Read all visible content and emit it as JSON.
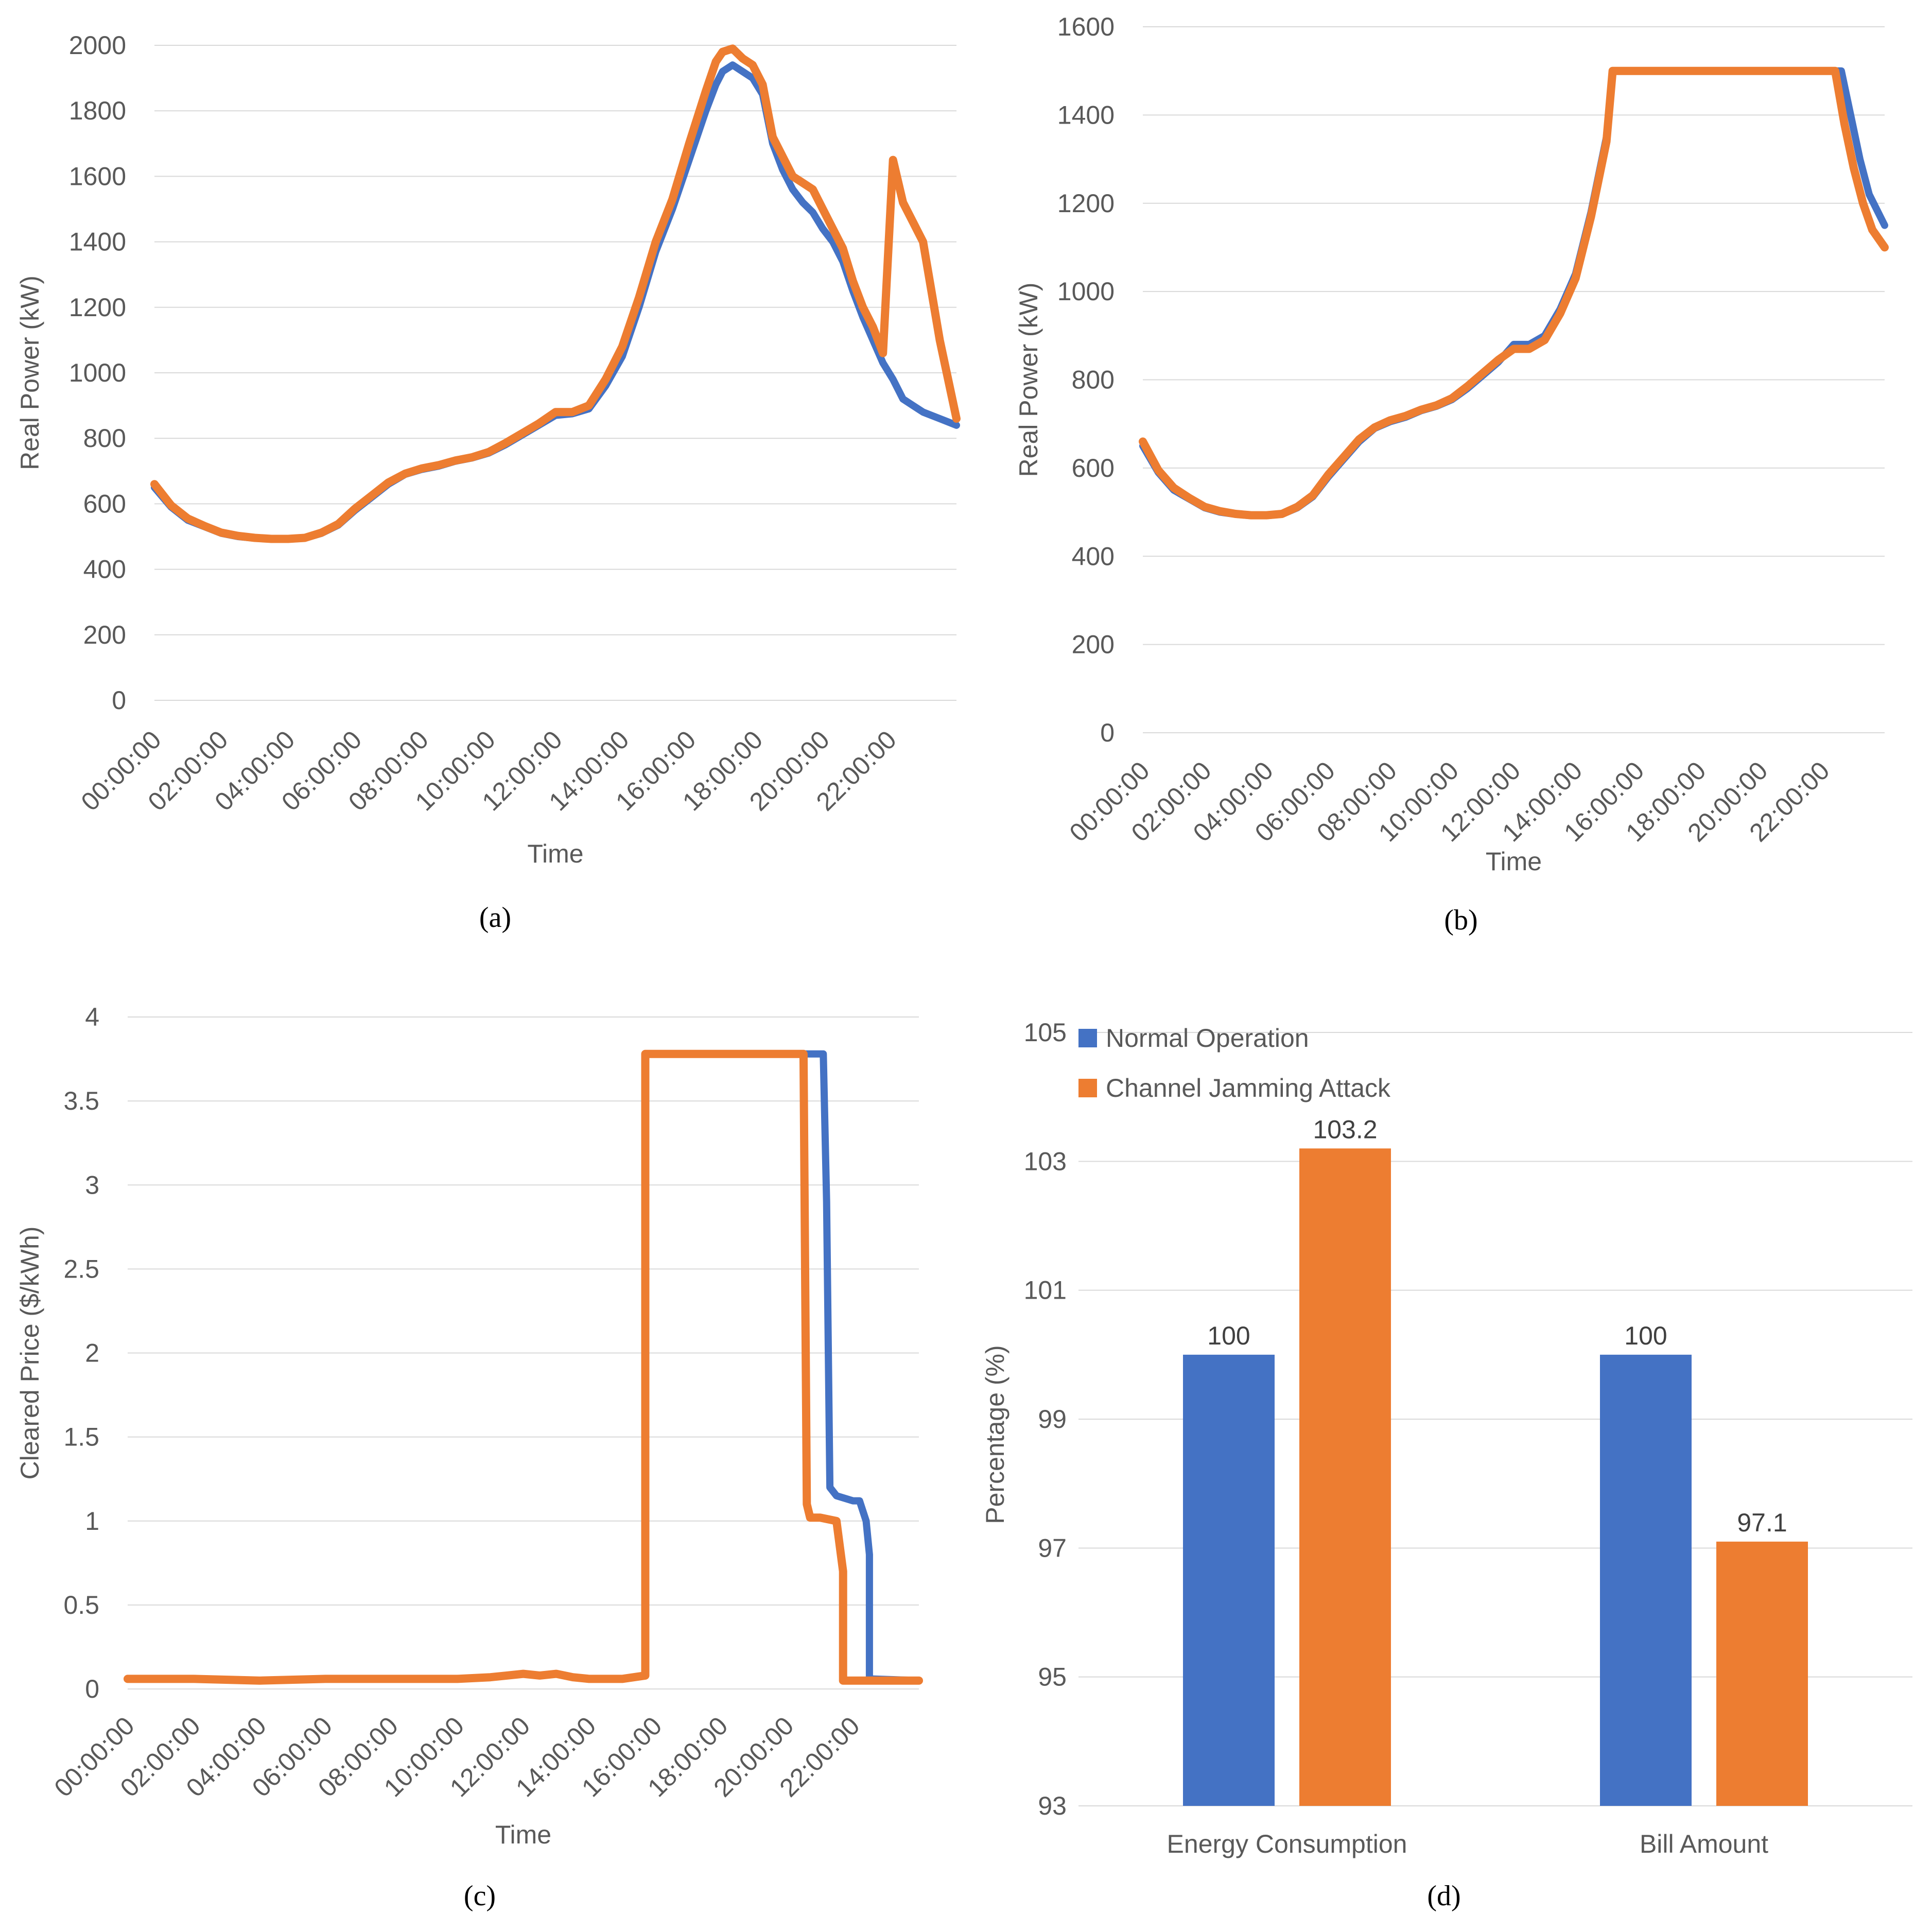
{
  "colors": {
    "normal": "#4472C4",
    "attack": "#ED7D31",
    "grid": "#D9D9D9",
    "text": "#595959"
  },
  "time_ticks": [
    "00:00:00",
    "02:00:00",
    "04:00:00",
    "06:00:00",
    "08:00:00",
    "10:00:00",
    "12:00:00",
    "14:00:00",
    "16:00:00",
    "18:00:00",
    "20:00:00",
    "22:00:00"
  ],
  "chart_data": [
    {
      "id": "a",
      "type": "line",
      "caption": "(a)",
      "xlabel": "Time",
      "ylabel": "Real Power (kW)",
      "ylim": [
        0,
        2000
      ],
      "yticks": [
        0,
        200,
        400,
        600,
        800,
        1000,
        1200,
        1400,
        1600,
        1800,
        2000
      ],
      "xlim": [
        0,
        24
      ],
      "series": [
        {
          "name": "Normal Operation",
          "x": [
            0,
            0.5,
            1,
            1.5,
            2,
            2.5,
            3,
            3.5,
            4,
            4.5,
            5,
            5.5,
            6,
            6.5,
            7,
            7.5,
            8,
            8.5,
            9,
            9.5,
            10,
            10.5,
            11,
            11.5,
            12,
            12.5,
            13,
            13.5,
            14,
            14.5,
            15,
            15.5,
            16,
            16.5,
            16.8,
            17,
            17.3,
            17.6,
            17.9,
            18.2,
            18.5,
            18.8,
            19.1,
            19.4,
            19.7,
            20,
            20.3,
            20.6,
            20.9,
            21.2,
            21.5,
            21.8,
            22.1,
            22.4,
            22.7,
            23,
            23.5,
            24
          ],
          "values": [
            650,
            590,
            550,
            530,
            510,
            500,
            495,
            492,
            492,
            495,
            510,
            535,
            580,
            620,
            660,
            690,
            705,
            715,
            730,
            740,
            755,
            780,
            810,
            840,
            870,
            875,
            890,
            960,
            1050,
            1200,
            1370,
            1500,
            1650,
            1800,
            1880,
            1920,
            1940,
            1920,
            1900,
            1850,
            1700,
            1620,
            1560,
            1520,
            1490,
            1440,
            1400,
            1340,
            1250,
            1170,
            1100,
            1030,
            980,
            920,
            900,
            880,
            860,
            840
          ]
        },
        {
          "name": "Channel Jamming Attack",
          "x": [
            0,
            0.5,
            1,
            1.5,
            2,
            2.5,
            3,
            3.5,
            4,
            4.5,
            5,
            5.5,
            6,
            6.5,
            7,
            7.5,
            8,
            8.5,
            9,
            9.5,
            10,
            10.5,
            11,
            11.5,
            12,
            12.5,
            13,
            13.5,
            14,
            14.5,
            15,
            15.5,
            16,
            16.5,
            16.8,
            17,
            17.3,
            17.6,
            17.9,
            18.2,
            18.5,
            18.8,
            19.1,
            19.4,
            19.7,
            20,
            20.3,
            20.6,
            20.9,
            21.2,
            21.5,
            21.8,
            22.1,
            22.4,
            22.7,
            23,
            23.5,
            24
          ],
          "values": [
            660,
            595,
            555,
            532,
            512,
            502,
            496,
            493,
            493,
            496,
            512,
            538,
            585,
            625,
            665,
            692,
            708,
            718,
            732,
            742,
            758,
            785,
            815,
            845,
            880,
            880,
            900,
            980,
            1080,
            1230,
            1400,
            1530,
            1700,
            1860,
            1950,
            1980,
            1990,
            1960,
            1940,
            1880,
            1720,
            1660,
            1600,
            1580,
            1560,
            1500,
            1440,
            1380,
            1280,
            1200,
            1140,
            1060,
            1650,
            1520,
            1460,
            1400,
            1100,
            860
          ]
        }
      ]
    },
    {
      "id": "b",
      "type": "line",
      "caption": "(b)",
      "xlabel": "Time",
      "ylabel": "Real Power (kW)",
      "ylim": [
        0,
        1600
      ],
      "yticks": [
        0,
        200,
        400,
        600,
        800,
        1000,
        1200,
        1400,
        1600
      ],
      "xlim": [
        0,
        24
      ],
      "series": [
        {
          "name": "Normal Operation",
          "x": [
            0,
            0.5,
            1,
            1.5,
            2,
            2.5,
            3,
            3.5,
            4,
            4.5,
            5,
            5.5,
            6,
            6.5,
            7,
            7.5,
            8,
            8.5,
            9,
            9.5,
            10,
            10.5,
            11,
            11.5,
            12,
            12.5,
            13,
            13.5,
            14,
            14.5,
            15,
            15.2,
            15.5,
            16,
            18,
            20,
            22,
            22.6,
            22.9,
            23.2,
            23.5,
            24
          ],
          "values": [
            650,
            590,
            550,
            530,
            510,
            500,
            495,
            492,
            492,
            495,
            510,
            535,
            580,
            620,
            660,
            690,
            705,
            715,
            730,
            740,
            755,
            780,
            810,
            840,
            880,
            880,
            900,
            960,
            1040,
            1180,
            1350,
            1500,
            1500,
            1500,
            1500,
            1500,
            1500,
            1500,
            1400,
            1300,
            1220,
            1150
          ]
        },
        {
          "name": "Channel Jamming Attack",
          "x": [
            0,
            0.5,
            1,
            1.5,
            2,
            2.5,
            3,
            3.5,
            4,
            4.5,
            5,
            5.5,
            6,
            6.5,
            7,
            7.5,
            8,
            8.5,
            9,
            9.5,
            10,
            10.5,
            11,
            11.5,
            12,
            12.5,
            13,
            13.5,
            14,
            14.5,
            15,
            15.2,
            15.5,
            16,
            18,
            20,
            22,
            22.4,
            22.7,
            23,
            23.3,
            23.6,
            24
          ],
          "values": [
            660,
            595,
            555,
            532,
            512,
            502,
            496,
            493,
            493,
            496,
            512,
            538,
            585,
            625,
            665,
            692,
            708,
            718,
            732,
            742,
            758,
            785,
            815,
            845,
            870,
            870,
            890,
            950,
            1030,
            1170,
            1340,
            1500,
            1500,
            1500,
            1500,
            1500,
            1500,
            1500,
            1380,
            1280,
            1200,
            1140,
            1100
          ]
        }
      ]
    },
    {
      "id": "c",
      "type": "line",
      "caption": "(c)",
      "xlabel": "Time",
      "ylabel": "Cleared Price ($/kWh)",
      "ylim": [
        0,
        4
      ],
      "yticks": [
        0,
        0.5,
        1,
        1.5,
        2,
        2.5,
        3,
        3.5,
        4
      ],
      "xlim": [
        0,
        24
      ],
      "series": [
        {
          "name": "Normal Operation",
          "x": [
            0,
            2,
            4,
            6,
            8,
            10,
            11,
            11.5,
            12,
            12.5,
            13,
            13.5,
            14,
            15,
            15.7,
            15.7,
            20.5,
            21.1,
            21.2,
            21.3,
            21.5,
            22,
            22.2,
            22.4,
            22.5,
            22.5,
            24
          ],
          "values": [
            0.06,
            0.06,
            0.05,
            0.06,
            0.06,
            0.06,
            0.07,
            0.08,
            0.09,
            0.08,
            0.09,
            0.07,
            0.06,
            0.06,
            0.08,
            3.78,
            3.78,
            3.78,
            2.9,
            1.2,
            1.15,
            1.12,
            1.12,
            1.0,
            0.8,
            0.06,
            0.05
          ]
        },
        {
          "name": "Channel Jamming Attack",
          "x": [
            0,
            2,
            4,
            6,
            8,
            10,
            11,
            11.5,
            12,
            12.5,
            13,
            13.5,
            14,
            15,
            15.7,
            15.7,
            20.5,
            20.6,
            20.7,
            21.0,
            21.5,
            21.7,
            21.7,
            24
          ],
          "values": [
            0.06,
            0.06,
            0.05,
            0.06,
            0.06,
            0.06,
            0.07,
            0.08,
            0.09,
            0.08,
            0.09,
            0.07,
            0.06,
            0.06,
            0.08,
            3.78,
            3.78,
            1.1,
            1.02,
            1.02,
            1.0,
            0.7,
            0.05,
            0.05
          ]
        }
      ]
    },
    {
      "id": "d",
      "type": "bar",
      "caption": "(d)",
      "xlabel": "",
      "ylabel": "Percentage  (%)",
      "ylim": [
        93,
        105
      ],
      "yticks": [
        93,
        95,
        97,
        99,
        101,
        103,
        105
      ],
      "categories": [
        "Energy Consumption",
        "Bill Amount"
      ],
      "series": [
        {
          "name": "Normal Operation",
          "values": [
            100,
            100
          ],
          "labels": [
            "100",
            "100"
          ]
        },
        {
          "name": "Channel Jamming Attack",
          "values": [
            103.2,
            97.1
          ],
          "labels": [
            "103.2",
            "97.1"
          ]
        }
      ]
    }
  ]
}
